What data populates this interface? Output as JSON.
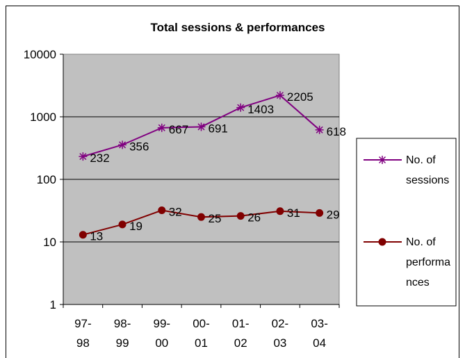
{
  "chart_data": {
    "type": "line",
    "title": "Total sessions & performances",
    "y_scale": "log",
    "ylim": [
      1,
      10000
    ],
    "y_ticks": [
      "1",
      "10",
      "100",
      "1000",
      "10000"
    ],
    "categories": [
      [
        "97-",
        "98"
      ],
      [
        "98-",
        "99"
      ],
      [
        "99-",
        "00"
      ],
      [
        "00-",
        "01"
      ],
      [
        "01-",
        "02"
      ],
      [
        "02-",
        "03"
      ],
      [
        "03-",
        "04"
      ]
    ],
    "series": [
      {
        "name": "No. of sessions",
        "legend_lines": [
          "No. of",
          "sessions"
        ],
        "marker": "asterisk",
        "color": "#800080",
        "values": [
          232,
          356,
          667,
          691,
          1403,
          2205,
          618
        ],
        "labels": [
          "232",
          "356",
          "667",
          "691",
          "1403",
          "2205",
          "618"
        ]
      },
      {
        "name": "No. of performances",
        "legend_lines": [
          "No. of",
          "performa",
          "nces"
        ],
        "marker": "circle",
        "color": "#800000",
        "values": [
          13,
          19,
          32,
          25,
          26,
          31,
          29
        ],
        "labels": [
          "13",
          "19",
          "32",
          "25",
          "26",
          "31",
          "29"
        ]
      }
    ],
    "plot_background": "#c0c0c0",
    "grid": true,
    "legend_position": "right"
  }
}
